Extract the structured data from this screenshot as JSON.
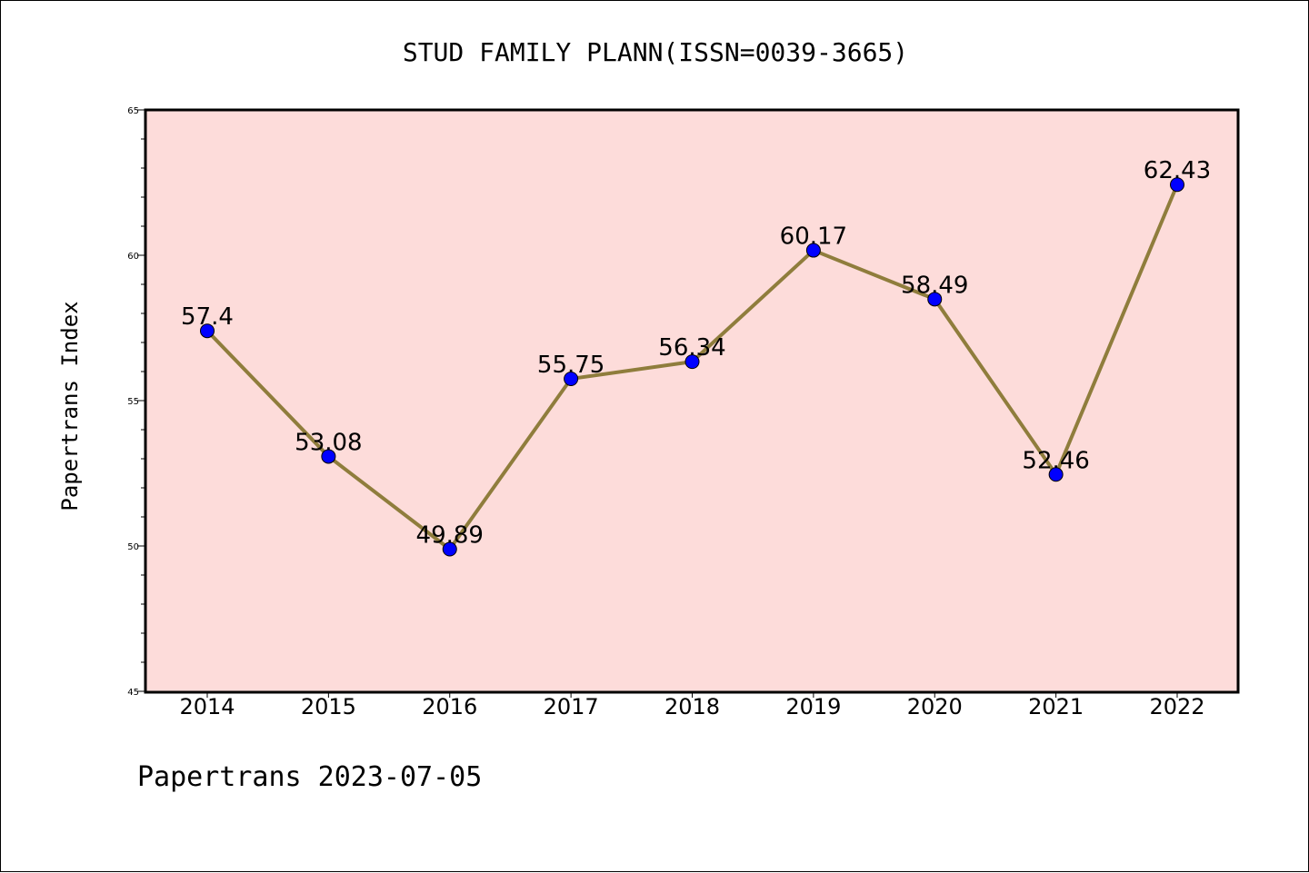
{
  "chart_data": {
    "type": "line",
    "title": "STUD FAMILY PLANN(ISSN=0039-3665)",
    "xlabel": "",
    "ylabel": "Papertrans Index",
    "categories": [
      "2014",
      "2015",
      "2016",
      "2017",
      "2018",
      "2019",
      "2020",
      "2021",
      "2022"
    ],
    "series": [
      {
        "values": [
          57.4,
          53.08,
          49.89,
          55.75,
          56.34,
          60.17,
          58.49,
          52.46,
          62.43
        ],
        "labels": [
          "57.4",
          "53.08",
          "49.89",
          "55.75",
          "56.34",
          "60.17",
          "58.49",
          "52.46",
          "62.43"
        ]
      }
    ],
    "ylim": [
      45,
      65
    ],
    "yticks": [
      45,
      50,
      55,
      60,
      65
    ],
    "ytick_labels": [
      "45",
      "50",
      "55",
      "60",
      "65"
    ],
    "grid": false,
    "colors": {
      "plot_background": "#fddcda",
      "line": "#8f7d3c",
      "marker": "#0000ff"
    }
  },
  "footer": "Papertrans 2023-07-05"
}
